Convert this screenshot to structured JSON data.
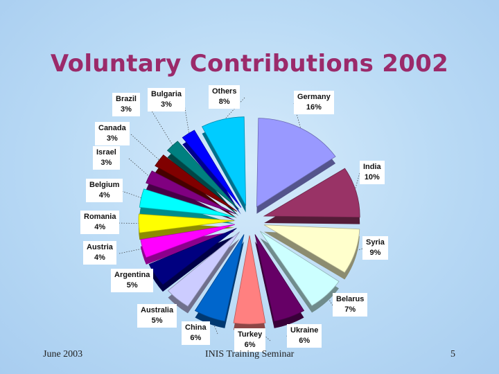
{
  "slide": {
    "title": "Voluntary Contributions 2002",
    "footer_left": "June 2003",
    "footer_center": "INIS Training Seminar",
    "footer_right": "5"
  },
  "chart_data": {
    "type": "pie",
    "exploded": true,
    "three_d": true,
    "slices": [
      {
        "label": "Germany",
        "value": 16,
        "text": "16%",
        "color": "#9999ff"
      },
      {
        "label": "India",
        "value": 10,
        "text": "10%",
        "color": "#993366"
      },
      {
        "label": "Syria",
        "value": 9,
        "text": "9%",
        "color": "#ffffcc"
      },
      {
        "label": "Belarus",
        "value": 7,
        "text": "7%",
        "color": "#ccffff"
      },
      {
        "label": "Ukraine",
        "value": 6,
        "text": "6%",
        "color": "#660066"
      },
      {
        "label": "Turkey",
        "value": 6,
        "text": "6%",
        "color": "#ff8080"
      },
      {
        "label": "China",
        "value": 6,
        "text": "6%",
        "color": "#0066cc"
      },
      {
        "label": "Australia",
        "value": 5,
        "text": "5%",
        "color": "#ccccff"
      },
      {
        "label": "Argentina",
        "value": 5,
        "text": "5%",
        "color": "#000080"
      },
      {
        "label": "Austria",
        "value": 4,
        "text": "4%",
        "color": "#ff00ff"
      },
      {
        "label": "Romania",
        "value": 4,
        "text": "4%",
        "color": "#ffff00"
      },
      {
        "label": "Belgium",
        "value": 4,
        "text": "4%",
        "color": "#00ffff"
      },
      {
        "label": "Israel",
        "value": 3,
        "text": "3%",
        "color": "#800080"
      },
      {
        "label": "Canada",
        "value": 3,
        "text": "3%",
        "color": "#800000"
      },
      {
        "label": "Brazil",
        "value": 3,
        "text": "3%",
        "color": "#008080"
      },
      {
        "label": "Bulgaria",
        "value": 3,
        "text": "3%",
        "color": "#0000ff"
      },
      {
        "label": "Others",
        "value": 8,
        "text": "8%",
        "color": "#00ccff"
      }
    ]
  }
}
